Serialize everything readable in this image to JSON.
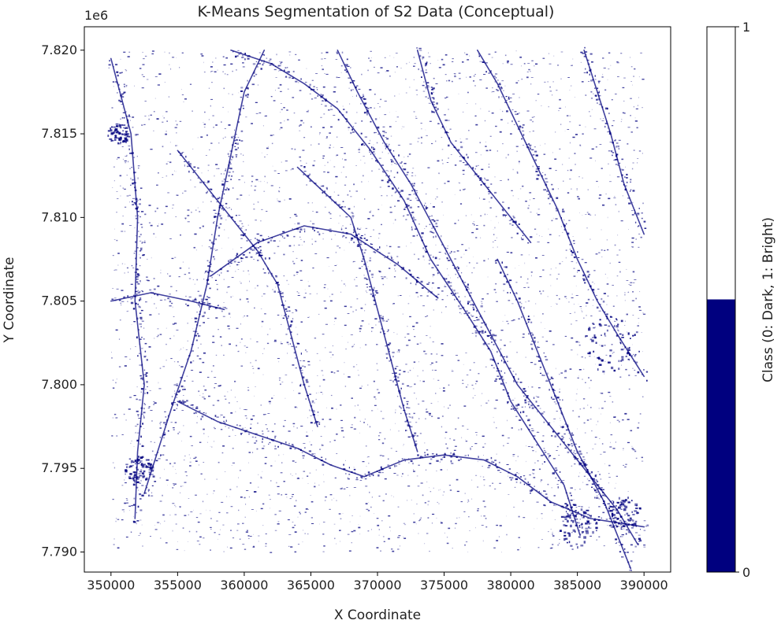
{
  "chart_data": {
    "type": "heatmap",
    "title": "K-Means Segmentation of S2 Data (Conceptual)",
    "xlabel": "X Coordinate",
    "ylabel": "Y Coordinate",
    "y_offset_label": "1e6",
    "xlim": [
      348000,
      392000
    ],
    "ylim": [
      7.7888,
      7.8214
    ],
    "data_extent": {
      "x": [
        350000,
        390000
      ],
      "y": [
        7.79,
        7.82
      ]
    },
    "x_ticks": [
      {
        "value": 350000,
        "label": "350000"
      },
      {
        "value": 355000,
        "label": "355000"
      },
      {
        "value": 360000,
        "label": "360000"
      },
      {
        "value": 365000,
        "label": "365000"
      },
      {
        "value": 370000,
        "label": "370000"
      },
      {
        "value": 375000,
        "label": "375000"
      },
      {
        "value": 380000,
        "label": "380000"
      },
      {
        "value": 385000,
        "label": "385000"
      },
      {
        "value": 390000,
        "label": "390000"
      }
    ],
    "y_ticks": [
      {
        "value": 7.79,
        "label": "7.790"
      },
      {
        "value": 7.795,
        "label": "7.795"
      },
      {
        "value": 7.8,
        "label": "7.800"
      },
      {
        "value": 7.805,
        "label": "7.805"
      },
      {
        "value": 7.81,
        "label": "7.810"
      },
      {
        "value": 7.815,
        "label": "7.815"
      },
      {
        "value": 7.82,
        "label": "7.820"
      }
    ],
    "classes": [
      {
        "value": 0,
        "name": "Dark",
        "color": "#00007f"
      },
      {
        "value": 1,
        "name": "Bright",
        "color": "#ffffff"
      }
    ],
    "colorbar": {
      "label": "Class (0: Dark, 1: Bright)",
      "ticks": [
        {
          "value": 0,
          "label": "0"
        },
        {
          "value": 1,
          "label": "1"
        }
      ],
      "split": 0.5
    },
    "dark_lineaments": [
      [
        [
          350000,
          7.8195
        ],
        [
          351500,
          7.815
        ],
        [
          352000,
          7.81
        ],
        [
          351800,
          7.805
        ],
        [
          352500,
          7.8
        ],
        [
          352000,
          7.796
        ],
        [
          351800,
          7.792
        ]
      ],
      [
        [
          352500,
          7.7935
        ],
        [
          354500,
          7.7985
        ],
        [
          356000,
          7.802
        ],
        [
          357200,
          7.806
        ],
        [
          358000,
          7.81
        ],
        [
          358800,
          7.813
        ],
        [
          360000,
          7.8175
        ],
        [
          361500,
          7.82
        ]
      ],
      [
        [
          359000,
          7.82
        ],
        [
          362000,
          7.8192
        ],
        [
          364500,
          7.818
        ],
        [
          367000,
          7.8165
        ],
        [
          369500,
          7.814
        ],
        [
          372000,
          7.811
        ],
        [
          374000,
          7.8075
        ],
        [
          376500,
          7.8045
        ],
        [
          378500,
          7.802
        ],
        [
          380000,
          7.799
        ],
        [
          382000,
          7.7965
        ],
        [
          384000,
          7.794
        ],
        [
          385200,
          7.791
        ]
      ],
      [
        [
          367000,
          7.82
        ],
        [
          368500,
          7.8175
        ],
        [
          370500,
          7.8145
        ],
        [
          372500,
          7.812
        ],
        [
          374500,
          7.809
        ],
        [
          376500,
          7.806
        ],
        [
          378500,
          7.803
        ],
        [
          380500,
          7.8
        ],
        [
          383000,
          7.7975
        ],
        [
          385500,
          7.795
        ],
        [
          388000,
          7.7925
        ],
        [
          389500,
          7.7905
        ]
      ],
      [
        [
          377500,
          7.82
        ],
        [
          379000,
          7.818
        ],
        [
          380500,
          7.8155
        ],
        [
          382000,
          7.813
        ],
        [
          383500,
          7.8105
        ],
        [
          385000,
          7.8075
        ],
        [
          386500,
          7.805
        ],
        [
          388000,
          7.803
        ],
        [
          390000,
          7.8005
        ]
      ],
      [
        [
          385500,
          7.82
        ],
        [
          386500,
          7.8175
        ],
        [
          387500,
          7.815
        ],
        [
          388500,
          7.812
        ],
        [
          390000,
          7.809
        ]
      ],
      [
        [
          357500,
          7.8065
        ],
        [
          361000,
          7.8085
        ],
        [
          364500,
          7.8095
        ],
        [
          368000,
          7.809
        ],
        [
          371500,
          7.8072
        ],
        [
          374500,
          7.8052
        ]
      ],
      [
        [
          355000,
          7.799
        ],
        [
          358000,
          7.7978
        ],
        [
          361000,
          7.797
        ],
        [
          364000,
          7.7962
        ],
        [
          366500,
          7.7952
        ],
        [
          369000,
          7.7945
        ],
        [
          372000,
          7.7955
        ],
        [
          375000,
          7.7958
        ],
        [
          378000,
          7.7955
        ],
        [
          380500,
          7.7945
        ],
        [
          383000,
          7.793
        ],
        [
          386000,
          7.792
        ],
        [
          390000,
          7.7915
        ]
      ],
      [
        [
          364000,
          7.813
        ],
        [
          366000,
          7.8115
        ],
        [
          368000,
          7.81
        ],
        [
          369000,
          7.8075
        ],
        [
          370000,
          7.8045
        ],
        [
          371000,
          7.8015
        ],
        [
          372000,
          7.7985
        ],
        [
          373000,
          7.796
        ]
      ],
      [
        [
          355000,
          7.814
        ],
        [
          357000,
          7.812
        ],
        [
          359000,
          7.81
        ],
        [
          361000,
          7.808
        ],
        [
          362500,
          7.806
        ],
        [
          363500,
          7.803
        ],
        [
          364500,
          7.8
        ],
        [
          365500,
          7.7975
        ]
      ],
      [
        [
          379000,
          7.8075
        ],
        [
          380500,
          7.805
        ],
        [
          382000,
          7.802
        ],
        [
          383500,
          7.799
        ],
        [
          385000,
          7.796
        ],
        [
          387000,
          7.793
        ],
        [
          389000,
          7.789
        ]
      ],
      [
        [
          350000,
          7.805
        ],
        [
          353000,
          7.8055
        ],
        [
          356000,
          7.805
        ],
        [
          358500,
          7.8045
        ]
      ],
      [
        [
          373000,
          7.82
        ],
        [
          374000,
          7.817
        ],
        [
          375500,
          7.8145
        ],
        [
          377500,
          7.8125
        ],
        [
          379500,
          7.8105
        ],
        [
          381500,
          7.8085
        ]
      ]
    ],
    "dark_clusters": [
      {
        "x": 387500,
        "y": 7.8025,
        "r": 2200
      },
      {
        "x": 385000,
        "y": 7.7915,
        "r": 1500
      },
      {
        "x": 388500,
        "y": 7.7925,
        "r": 1200
      },
      {
        "x": 352000,
        "y": 7.795,
        "r": 1000
      },
      {
        "x": 350500,
        "y": 7.815,
        "r": 800
      }
    ]
  }
}
